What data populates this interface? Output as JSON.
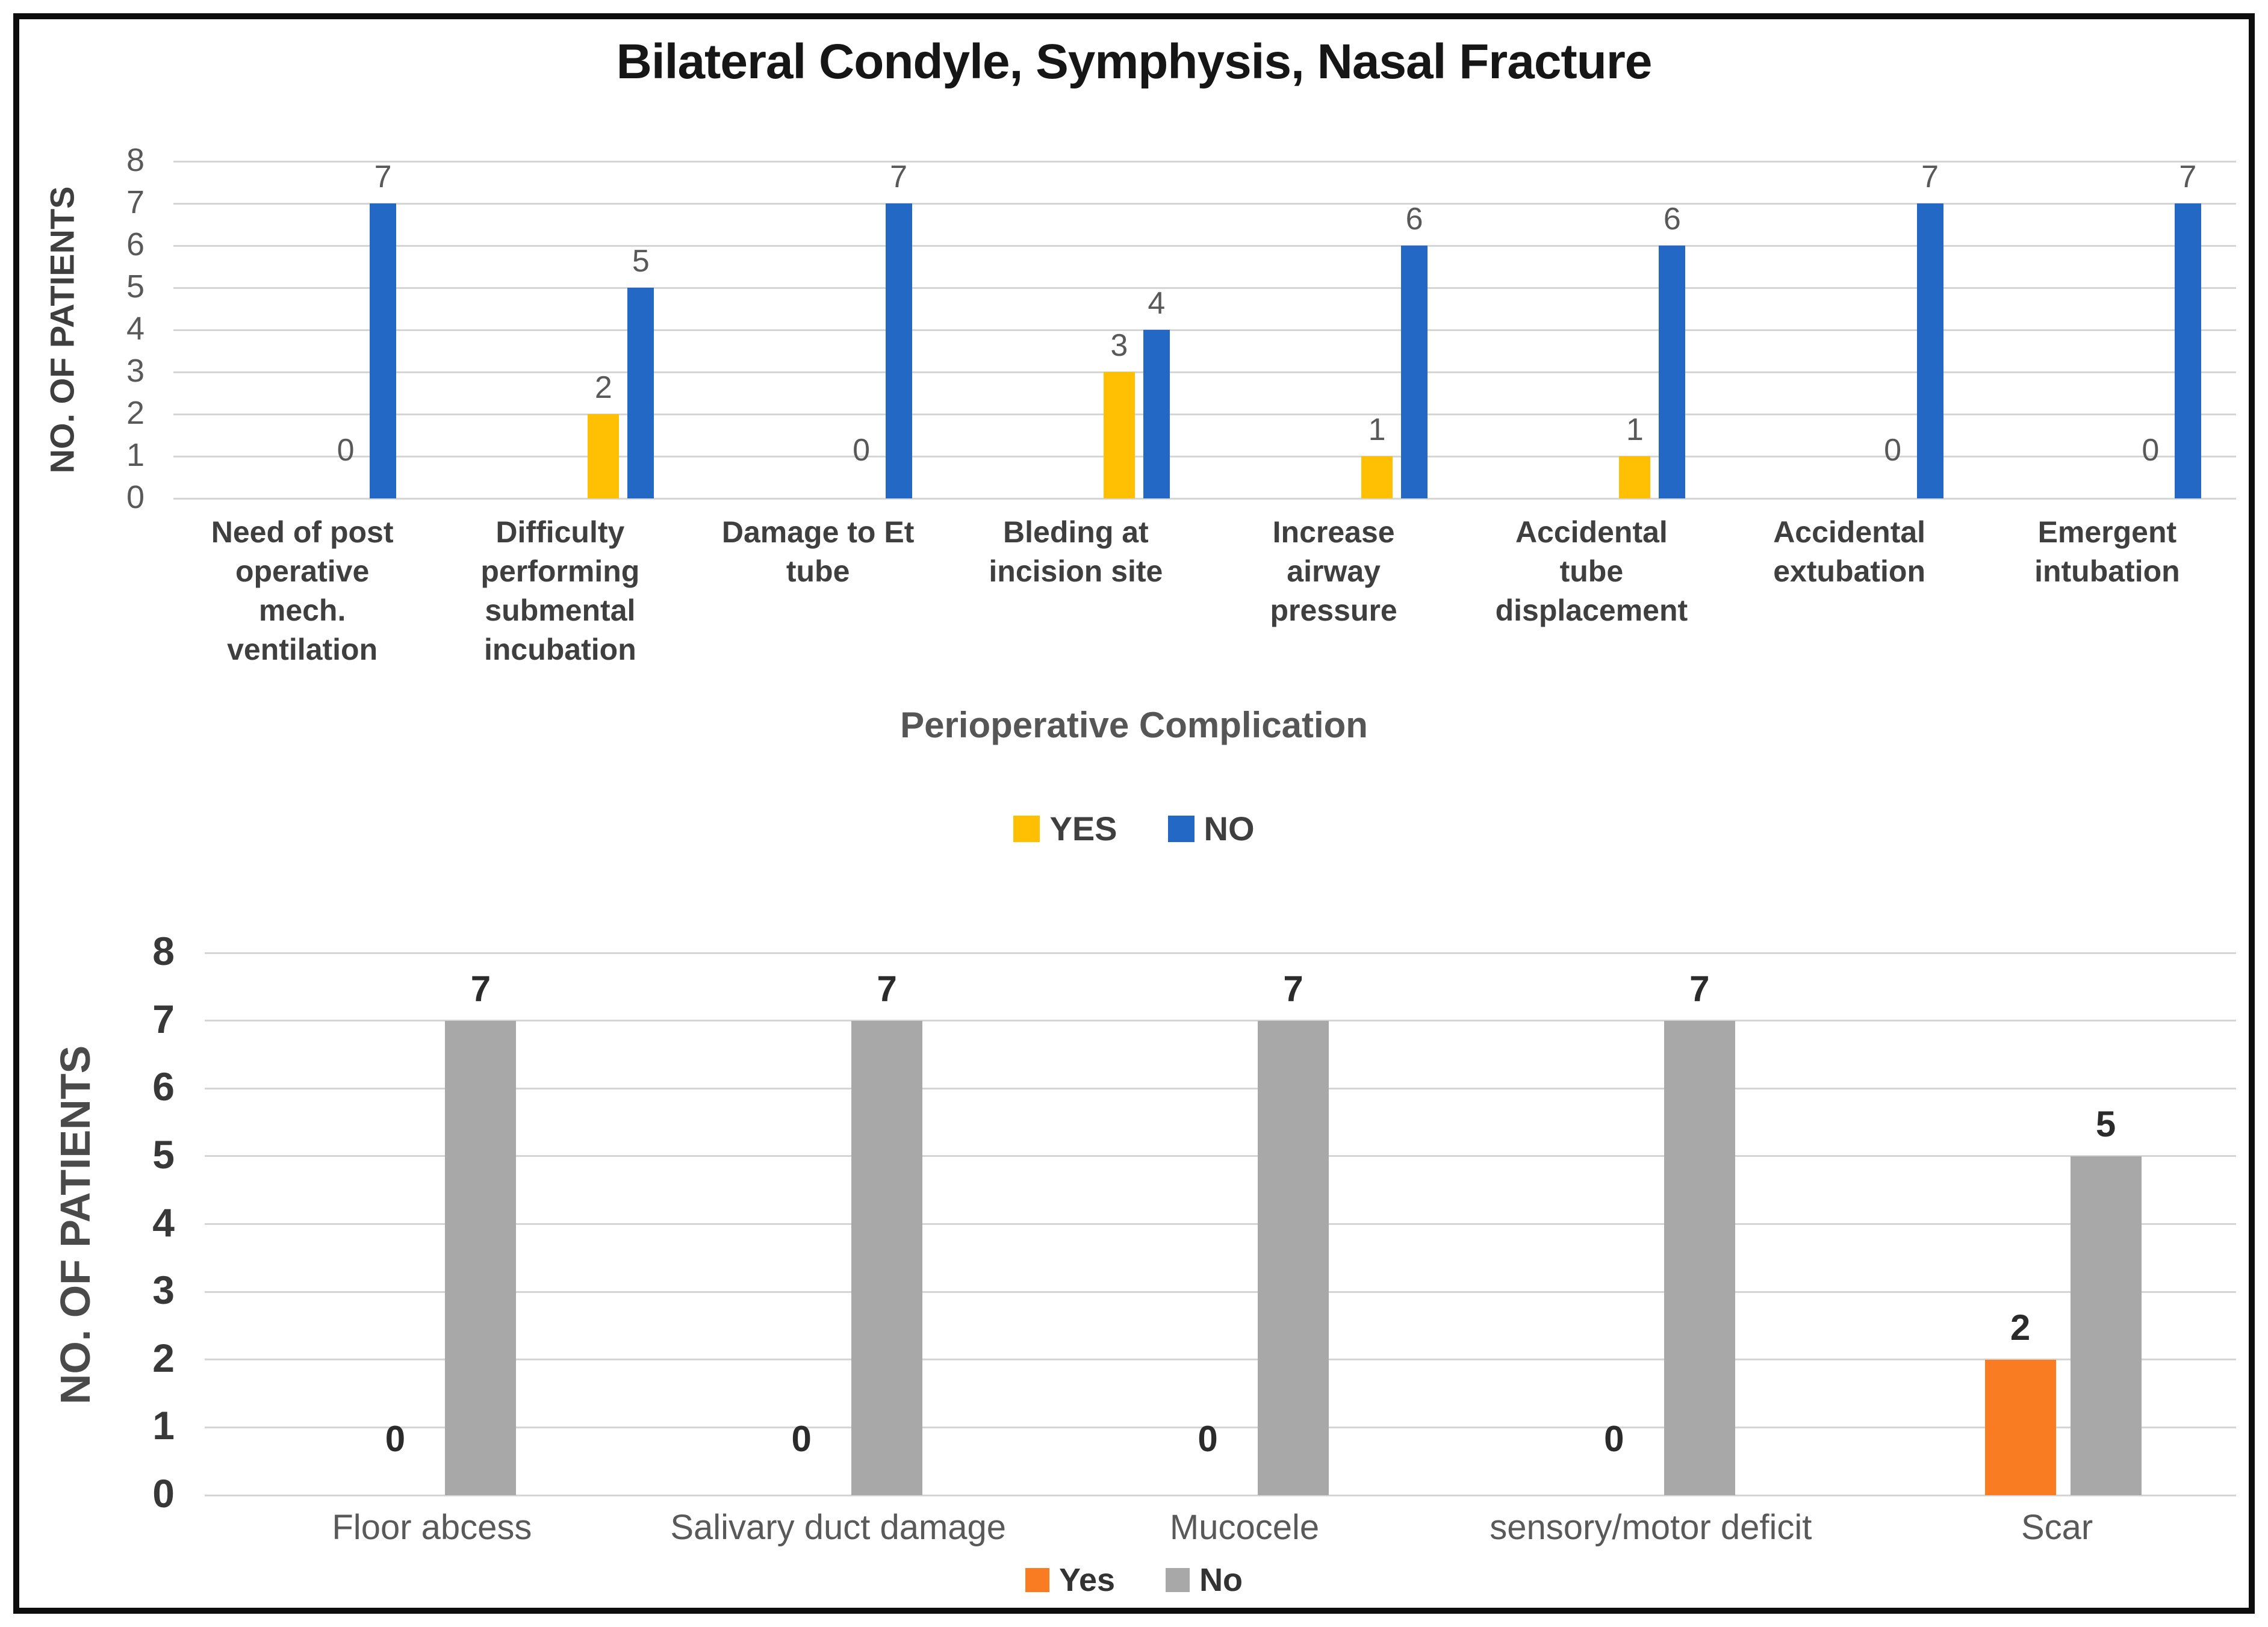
{
  "figure": {
    "title": "Bilateral Condyle, Symphysis, Nasal Fracture"
  },
  "chart_data": [
    {
      "type": "bar",
      "title": "Bilateral Condyle, Symphysis, Nasal Fracture",
      "categories": [
        "Need of post operative mech. ventilation",
        "Difficulty performing submental incubation",
        "Damage to Et tube",
        "Bleding at incision site",
        "Increase airway pressure",
        "Accidental tube displacement",
        "Accidental extubation",
        "Emergent intubation"
      ],
      "series": [
        {
          "name": "YES",
          "color": "#FFC003",
          "values": [
            0,
            2,
            0,
            3,
            1,
            1,
            0,
            0
          ]
        },
        {
          "name": "NO",
          "color": "#2268C4",
          "values": [
            7,
            5,
            7,
            4,
            6,
            6,
            7,
            7
          ]
        }
      ],
      "xlabel": "Perioperative Complication",
      "ylabel": "NO. OF PATIENTS",
      "ylim": [
        0,
        8
      ],
      "yticks": [
        0,
        1,
        2,
        3,
        4,
        5,
        6,
        7,
        8
      ],
      "grid": true,
      "value_labels": true,
      "legend_position": "bottom"
    },
    {
      "type": "bar",
      "title": "",
      "categories": [
        "Floor abcess",
        "Salivary duct damage",
        "Mucocele",
        "sensory/motor deficit",
        "Scar"
      ],
      "series": [
        {
          "name": "Yes",
          "color": "#F97C22",
          "values": [
            0,
            0,
            0,
            0,
            2
          ]
        },
        {
          "name": "No",
          "color": "#A8A8A8",
          "values": [
            7,
            7,
            7,
            7,
            5
          ]
        }
      ],
      "xlabel": "",
      "ylabel": "NO. OF PATIENTS",
      "ylim": [
        0,
        8
      ],
      "yticks": [
        0,
        1,
        2,
        3,
        4,
        5,
        6,
        7,
        8
      ],
      "grid": true,
      "value_labels": true,
      "legend_position": "bottom"
    }
  ]
}
